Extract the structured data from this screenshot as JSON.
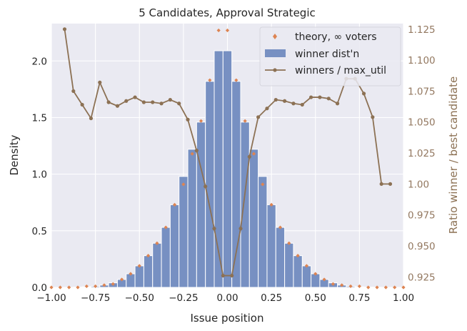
{
  "chart_data": {
    "type": "bar",
    "title": "5 Candidates, Approval Strategic",
    "xlabel": "Issue position",
    "ylabel": "Density",
    "y2label": "Ratio winner / best candidate",
    "xlim": [
      -1.0,
      1.0
    ],
    "ylim": [
      0,
      2.33
    ],
    "y2lim": [
      0.9165,
      1.1295
    ],
    "xticks": [
      "−1.00",
      "−0.75",
      "−0.50",
      "−0.25",
      "0.00",
      "0.25",
      "0.50",
      "0.75",
      "1.00"
    ],
    "xtick_values": [
      -1.0,
      -0.75,
      -0.5,
      -0.25,
      0.0,
      0.25,
      0.5,
      0.75,
      1.0
    ],
    "yticks": [
      "0.0",
      "0.5",
      "1.0",
      "1.5",
      "2.0"
    ],
    "ytick_values": [
      0.0,
      0.5,
      1.0,
      1.5,
      2.0
    ],
    "y2ticks": [
      "0.925",
      "0.950",
      "0.975",
      "1.00",
      "1.025",
      "1.050",
      "1.075",
      "1.100",
      "1.125"
    ],
    "y2tick_values": [
      0.925,
      0.95,
      0.975,
      1.0,
      1.025,
      1.05,
      1.075,
      1.1,
      1.125
    ],
    "grid": true,
    "legend_position": "top-right",
    "colors": {
      "background": "#eaeaf2",
      "grid": "#ffffff",
      "bars": "#7790c2",
      "bar_edge": "#ffffff",
      "theory": "#dd8452",
      "ratio_line": "#8c7154",
      "ratio_axis": "#937860",
      "text": "#262626"
    },
    "series": [
      {
        "name": "winner dist'n",
        "kind": "bar",
        "bin_width": 0.05,
        "x": [
          -0.85,
          -0.8,
          -0.75,
          -0.7,
          -0.65,
          -0.6,
          -0.55,
          -0.5,
          -0.45,
          -0.4,
          -0.35,
          -0.3,
          -0.25,
          -0.2,
          -0.15,
          -0.1,
          -0.05,
          0.0,
          0.05,
          0.1,
          0.15,
          0.2,
          0.25,
          0.3,
          0.35,
          0.4,
          0.45,
          0.5,
          0.55,
          0.6,
          0.65,
          0.7,
          0.75,
          0.8,
          0.85
        ],
        "values": [
          0.002,
          0.005,
          0.01,
          0.02,
          0.04,
          0.07,
          0.12,
          0.19,
          0.28,
          0.39,
          0.53,
          0.73,
          0.98,
          1.22,
          1.46,
          1.82,
          2.09,
          2.09,
          1.82,
          1.46,
          1.22,
          0.98,
          0.73,
          0.53,
          0.39,
          0.28,
          0.19,
          0.12,
          0.07,
          0.04,
          0.02,
          0.01,
          0.005,
          0.002,
          0.001
        ]
      },
      {
        "name": "theory, ∞ voters",
        "kind": "scatter",
        "marker": "diamond",
        "x": [
          -1.0,
          -0.95,
          -0.9,
          -0.85,
          -0.8,
          -0.75,
          -0.7,
          -0.65,
          -0.6,
          -0.55,
          -0.5,
          -0.45,
          -0.4,
          -0.35,
          -0.3,
          -0.25,
          -0.2,
          -0.15,
          -0.1,
          -0.05,
          0.0,
          0.05,
          0.1,
          0.15,
          0.2,
          0.25,
          0.3,
          0.35,
          0.4,
          0.45,
          0.5,
          0.55,
          0.6,
          0.65,
          0.7,
          0.75,
          0.8,
          0.85,
          0.9,
          0.95,
          1.0
        ],
        "values": [
          0.0,
          0.0,
          0.0,
          0.0,
          0.01,
          0.01,
          0.02,
          0.03,
          0.07,
          0.12,
          0.19,
          0.28,
          0.39,
          0.53,
          0.73,
          0.91,
          1.18,
          1.47,
          1.83,
          2.27,
          2.27,
          1.83,
          1.47,
          1.18,
          0.91,
          0.73,
          0.53,
          0.39,
          0.28,
          0.19,
          0.12,
          0.07,
          0.03,
          0.02,
          0.01,
          0.01,
          0.0,
          0.0,
          0.0,
          0.0,
          0.0
        ]
      },
      {
        "name": "winners / max_util",
        "kind": "line",
        "axis": "right",
        "x": [
          -0.925,
          -0.875,
          -0.825,
          -0.775,
          -0.725,
          -0.675,
          -0.625,
          -0.575,
          -0.525,
          -0.475,
          -0.425,
          -0.375,
          -0.325,
          -0.275,
          -0.225,
          -0.175,
          -0.125,
          -0.075,
          -0.025,
          0.025,
          0.075,
          0.125,
          0.175,
          0.225,
          0.275,
          0.325,
          0.375,
          0.425,
          0.475,
          0.525,
          0.575,
          0.625,
          0.675,
          0.725,
          0.775,
          0.825,
          0.875,
          0.925
        ],
        "values": [
          1.125,
          1.075,
          1.064,
          1.053,
          1.082,
          1.066,
          1.063,
          1.067,
          1.07,
          1.066,
          1.066,
          1.065,
          1.068,
          1.065,
          1.052,
          1.027,
          0.998,
          0.964,
          0.926,
          0.926,
          0.964,
          1.022,
          1.054,
          1.061,
          1.068,
          1.067,
          1.065,
          1.064,
          1.07,
          1.07,
          1.069,
          1.065,
          1.085,
          1.085,
          1.073,
          1.054,
          1.0,
          1.0
        ]
      }
    ]
  }
}
